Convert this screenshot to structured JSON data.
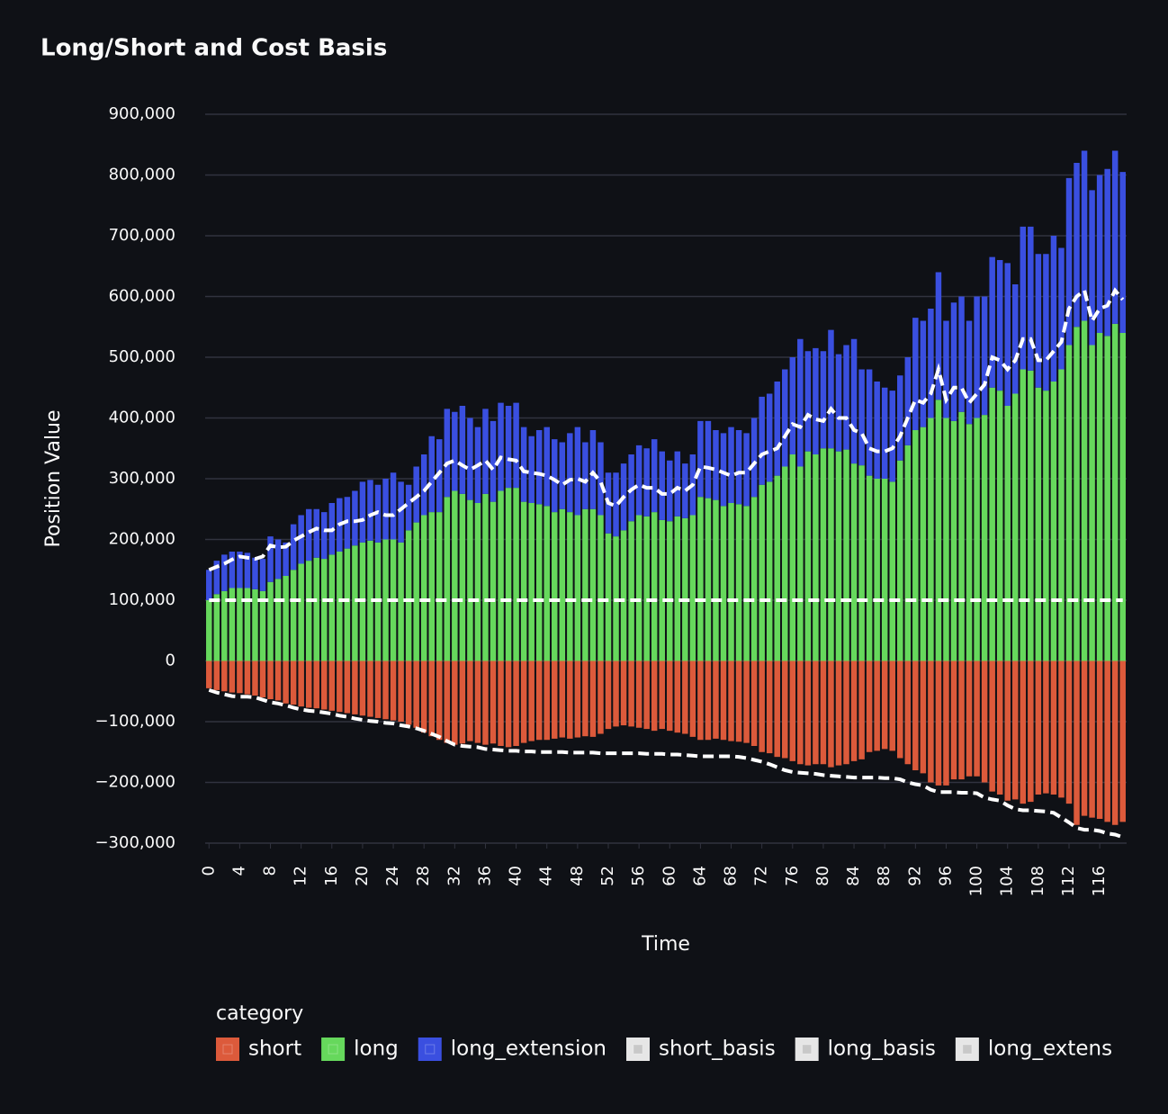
{
  "chart_data": {
    "type": "bar",
    "title": "Long/Short and Cost Basis",
    "x_label": "Time",
    "y_label": "Position Value",
    "legend_title": "category",
    "x": [
      0,
      1,
      2,
      3,
      4,
      5,
      6,
      7,
      8,
      9,
      10,
      11,
      12,
      13,
      14,
      15,
      16,
      17,
      18,
      19,
      20,
      21,
      22,
      23,
      24,
      25,
      26,
      27,
      28,
      29,
      30,
      31,
      32,
      33,
      34,
      35,
      36,
      37,
      38,
      39,
      40,
      41,
      42,
      43,
      44,
      45,
      46,
      47,
      48,
      49,
      50,
      51,
      52,
      53,
      54,
      55,
      56,
      57,
      58,
      59,
      60,
      61,
      62,
      63,
      64,
      65,
      66,
      67,
      68,
      69,
      70,
      71,
      72,
      73,
      74,
      75,
      76,
      77,
      78,
      79,
      80,
      81,
      82,
      83,
      84,
      85,
      86,
      87,
      88,
      89,
      90,
      91,
      92,
      93,
      94,
      95,
      96,
      97,
      98,
      99,
      100,
      101,
      102,
      103,
      104,
      105,
      106,
      107,
      108,
      109,
      110,
      111,
      112,
      113,
      114,
      115,
      116,
      117,
      118,
      119
    ],
    "xlim": [
      -0.5,
      119.5
    ],
    "xticks": [
      0,
      4,
      8,
      12,
      16,
      20,
      24,
      28,
      32,
      36,
      40,
      44,
      48,
      52,
      56,
      60,
      64,
      68,
      72,
      76,
      80,
      84,
      88,
      92,
      96,
      100,
      104,
      108,
      112,
      116
    ],
    "ylim": [
      -300000,
      900000
    ],
    "yticks": [
      {
        "value": -300000,
        "label": "−300,000"
      },
      {
        "value": -200000,
        "label": "−200,000"
      },
      {
        "value": -100000,
        "label": "−100,000"
      },
      0,
      {
        "value": 100000,
        "label": "100,000"
      },
      {
        "value": 200000,
        "label": "200,000"
      },
      {
        "value": 300000,
        "label": "300,000"
      },
      {
        "value": 400000,
        "label": "400,000"
      },
      {
        "value": 500000,
        "label": "500,000"
      },
      {
        "value": 600000,
        "label": "600,000"
      },
      {
        "value": 700000,
        "label": "700,000"
      },
      {
        "value": 800000,
        "label": "800,000"
      },
      {
        "value": 900000,
        "label": "900,000"
      }
    ],
    "grid": true,
    "stacked": true,
    "series": [
      {
        "name": "short",
        "type": "bar",
        "color": "#dc5a3b",
        "values": [
          -45000,
          -48000,
          -50000,
          -52000,
          -53000,
          -55000,
          -57000,
          -60000,
          -63000,
          -65000,
          -70000,
          -72000,
          -75000,
          -77000,
          -78000,
          -80000,
          -82000,
          -84000,
          -86000,
          -88000,
          -90000,
          -92000,
          -94000,
          -96000,
          -98000,
          -100000,
          -105000,
          -110000,
          -118000,
          -124000,
          -130000,
          -135000,
          -138000,
          -136000,
          -132000,
          -135000,
          -138000,
          -136000,
          -140000,
          -142000,
          -140000,
          -135000,
          -132000,
          -130000,
          -130000,
          -128000,
          -126000,
          -128000,
          -126000,
          -124000,
          -125000,
          -120000,
          -112000,
          -108000,
          -106000,
          -108000,
          -110000,
          -112000,
          -115000,
          -112000,
          -115000,
          -118000,
          -120000,
          -125000,
          -130000,
          -130000,
          -128000,
          -130000,
          -132000,
          -133000,
          -135000,
          -140000,
          -150000,
          -152000,
          -158000,
          -160000,
          -165000,
          -170000,
          -172000,
          -170000,
          -170000,
          -175000,
          -172000,
          -170000,
          -165000,
          -162000,
          -150000,
          -148000,
          -145000,
          -148000,
          -160000,
          -170000,
          -180000,
          -185000,
          -200000,
          -205000,
          -205000,
          -195000,
          -195000,
          -190000,
          -190000,
          -200000,
          -215000,
          -220000,
          -230000,
          -228000,
          -235000,
          -232000,
          -220000,
          -218000,
          -220000,
          -225000,
          -235000,
          -270000,
          -255000,
          -258000,
          -260000,
          -265000,
          -270000,
          -265000
        ]
      },
      {
        "name": "long",
        "type": "bar",
        "color": "#66d85c",
        "values": [
          100000,
          110000,
          115000,
          120000,
          120000,
          120000,
          118000,
          115000,
          130000,
          135000,
          140000,
          150000,
          160000,
          165000,
          170000,
          168000,
          175000,
          180000,
          185000,
          190000,
          195000,
          198000,
          195000,
          200000,
          200000,
          195000,
          215000,
          228000,
          240000,
          245000,
          245000,
          270000,
          280000,
          275000,
          265000,
          260000,
          275000,
          262000,
          280000,
          285000,
          285000,
          262000,
          260000,
          258000,
          255000,
          245000,
          250000,
          245000,
          240000,
          250000,
          250000,
          240000,
          210000,
          205000,
          215000,
          230000,
          240000,
          238000,
          245000,
          232000,
          230000,
          238000,
          235000,
          240000,
          270000,
          268000,
          265000,
          255000,
          260000,
          258000,
          255000,
          270000,
          290000,
          295000,
          305000,
          320000,
          340000,
          320000,
          345000,
          340000,
          350000,
          350000,
          345000,
          348000,
          325000,
          322000,
          305000,
          300000,
          300000,
          295000,
          330000,
          355000,
          380000,
          385000,
          400000,
          430000,
          400000,
          395000,
          410000,
          390000,
          400000,
          405000,
          450000,
          445000,
          420000,
          440000,
          480000,
          478000,
          450000,
          445000,
          460000,
          480000,
          520000,
          550000,
          560000,
          520000,
          540000,
          535000,
          555000,
          540000
        ]
      },
      {
        "name": "long_extension",
        "type": "bar",
        "color": "#3a4fe0",
        "values": [
          50000,
          55000,
          60000,
          60000,
          60000,
          58000,
          52000,
          53000,
          75000,
          65000,
          55000,
          75000,
          80000,
          85000,
          80000,
          77000,
          85000,
          88000,
          85000,
          90000,
          100000,
          100000,
          95000,
          100000,
          110000,
          100000,
          75000,
          92000,
          100000,
          125000,
          120000,
          145000,
          130000,
          145000,
          135000,
          125000,
          140000,
          133000,
          145000,
          135000,
          140000,
          123000,
          110000,
          122000,
          130000,
          120000,
          110000,
          130000,
          145000,
          110000,
          130000,
          120000,
          100000,
          105000,
          110000,
          110000,
          115000,
          112000,
          120000,
          113000,
          100000,
          107000,
          90000,
          100000,
          125000,
          127000,
          115000,
          120000,
          125000,
          122000,
          120000,
          130000,
          145000,
          145000,
          155000,
          160000,
          160000,
          210000,
          165000,
          175000,
          160000,
          195000,
          160000,
          172000,
          205000,
          158000,
          175000,
          160000,
          150000,
          150000,
          140000,
          145000,
          185000,
          175000,
          180000,
          210000,
          160000,
          195000,
          190000,
          170000,
          200000,
          195000,
          215000,
          215000,
          235000,
          180000,
          235000,
          237000,
          220000,
          225000,
          240000,
          200000,
          275000,
          270000,
          280000,
          255000,
          260000,
          275000,
          285000,
          265000
        ]
      },
      {
        "name": "short_basis",
        "type": "line",
        "color": "#ffffff",
        "values": [
          -48000,
          -52000,
          -55000,
          -58000,
          -59000,
          -59000,
          -60000,
          -64000,
          -68000,
          -70000,
          -73000,
          -77000,
          -80000,
          -82000,
          -83000,
          -85000,
          -87000,
          -90000,
          -92000,
          -95000,
          -97000,
          -99000,
          -100000,
          -102000,
          -103000,
          -106000,
          -108000,
          -111000,
          -115000,
          -120000,
          -125000,
          -132000,
          -138000,
          -140000,
          -141000,
          -142000,
          -145000,
          -146000,
          -147000,
          -148000,
          -148000,
          -149000,
          -149000,
          -150000,
          -150000,
          -150000,
          -150000,
          -151000,
          -151000,
          -151000,
          -151000,
          -152000,
          -152000,
          -152000,
          -152000,
          -152000,
          -152000,
          -153000,
          -153000,
          -153000,
          -154000,
          -154000,
          -155000,
          -156000,
          -157000,
          -157000,
          -157000,
          -157000,
          -157000,
          -158000,
          -160000,
          -163000,
          -166000,
          -170000,
          -175000,
          -180000,
          -183000,
          -184000,
          -185000,
          -186000,
          -188000,
          -189000,
          -190000,
          -191000,
          -192000,
          -192000,
          -192000,
          -192000,
          -193000,
          -193000,
          -195000,
          -200000,
          -203000,
          -205000,
          -212000,
          -216000,
          -216000,
          -216000,
          -217000,
          -217000,
          -218000,
          -225000,
          -228000,
          -230000,
          -238000,
          -244000,
          -246000,
          -246000,
          -247000,
          -248000,
          -250000,
          -258000,
          -266000,
          -275000,
          -278000,
          -278000,
          -280000,
          -284000,
          -286000,
          -290000
        ]
      },
      {
        "name": "long_basis",
        "type": "line",
        "color": "#ffffff",
        "values": [
          100000,
          100000,
          100000,
          100000,
          100000,
          100000,
          100000,
          100000,
          100000,
          100000,
          100000,
          100000,
          100000,
          100000,
          100000,
          100000,
          100000,
          100000,
          100000,
          100000,
          100000,
          100000,
          100000,
          100000,
          100000,
          100000,
          100000,
          100000,
          100000,
          100000,
          100000,
          100000,
          100000,
          100000,
          100000,
          100000,
          100000,
          100000,
          100000,
          100000,
          100000,
          100000,
          100000,
          100000,
          100000,
          100000,
          100000,
          100000,
          100000,
          100000,
          100000,
          100000,
          100000,
          100000,
          100000,
          100000,
          100000,
          100000,
          100000,
          100000,
          100000,
          100000,
          100000,
          100000,
          100000,
          100000,
          100000,
          100000,
          100000,
          100000,
          100000,
          100000,
          100000,
          100000,
          100000,
          100000,
          100000,
          100000,
          100000,
          100000,
          100000,
          100000,
          100000,
          100000,
          100000,
          100000,
          100000,
          100000,
          100000,
          100000,
          100000,
          100000,
          100000,
          100000,
          100000,
          100000,
          100000,
          100000,
          100000,
          100000,
          100000,
          100000,
          100000,
          100000,
          100000,
          100000,
          100000,
          100000,
          100000,
          100000,
          100000,
          100000,
          100000,
          100000,
          100000,
          100000,
          100000,
          100000,
          100000,
          100000
        ]
      },
      {
        "name": "long_extens",
        "type": "line",
        "color": "#ffffff",
        "values": [
          150000,
          155000,
          160000,
          167000,
          172000,
          170000,
          168000,
          172000,
          190000,
          187000,
          188000,
          198000,
          205000,
          212000,
          218000,
          215000,
          215000,
          225000,
          230000,
          230000,
          232000,
          240000,
          245000,
          240000,
          240000,
          250000,
          260000,
          270000,
          280000,
          295000,
          310000,
          325000,
          330000,
          322000,
          315000,
          322000,
          330000,
          315000,
          335000,
          332000,
          330000,
          312000,
          310000,
          308000,
          305000,
          298000,
          290000,
          298000,
          300000,
          295000,
          310000,
          295000,
          260000,
          255000,
          270000,
          282000,
          290000,
          285000,
          285000,
          275000,
          275000,
          285000,
          280000,
          290000,
          320000,
          318000,
          315000,
          310000,
          305000,
          310000,
          310000,
          325000,
          340000,
          345000,
          350000,
          370000,
          390000,
          385000,
          405000,
          398000,
          395000,
          415000,
          400000,
          400000,
          380000,
          375000,
          350000,
          345000,
          345000,
          350000,
          370000,
          400000,
          430000,
          425000,
          440000,
          480000,
          430000,
          450000,
          450000,
          425000,
          440000,
          455000,
          500000,
          495000,
          480000,
          495000,
          530000,
          530000,
          495000,
          495000,
          510000,
          525000,
          580000,
          600000,
          610000,
          560000,
          580000,
          585000,
          610000,
          595000
        ]
      }
    ]
  }
}
